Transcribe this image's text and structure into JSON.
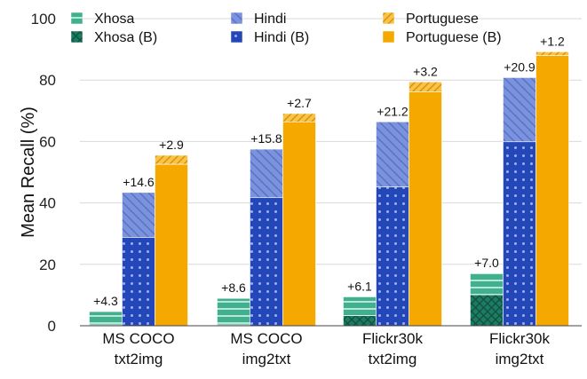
{
  "chart_data": {
    "type": "bar",
    "ylabel": "Mean Recall (%)",
    "ylim": [
      0,
      100
    ],
    "yticks": [
      0,
      20,
      40,
      60,
      80,
      100
    ],
    "grid": true,
    "legend_position": "top",
    "categories": [
      [
        "MS COCO",
        "txt2img"
      ],
      [
        "MS COCO",
        "img2txt"
      ],
      [
        "Flickr30k",
        "txt2img"
      ],
      [
        "Flickr30k",
        "img2txt"
      ]
    ],
    "series": [
      {
        "language": "Xhosa",
        "base_name": "Xhosa (B)",
        "boost_name": "Xhosa",
        "color": "#26a17f",
        "base_values": [
          0.3,
          0.3,
          3.3,
          10.1
        ],
        "total_values": [
          4.6,
          8.9,
          9.4,
          17.1
        ],
        "delta_labels": [
          "+4.3",
          "+8.6",
          "+6.1",
          "+7.0"
        ]
      },
      {
        "language": "Hindi",
        "base_name": "Hindi (B)",
        "boost_name": "Hindi",
        "color": "#2043b8",
        "light_color": "#7990d9",
        "base_values": [
          28.8,
          41.7,
          45.2,
          59.9
        ],
        "total_values": [
          43.4,
          57.5,
          66.4,
          80.8
        ],
        "delta_labels": [
          "+14.6",
          "+15.8",
          "+21.2",
          "+20.9"
        ]
      },
      {
        "language": "Portuguese",
        "base_name": "Portuguese (B)",
        "boost_name": "Portuguese",
        "color": "#f5a800",
        "light_color": "#f8c24b",
        "base_values": [
          52.6,
          66.4,
          76.2,
          88.0
        ],
        "total_values": [
          55.5,
          69.1,
          79.4,
          89.2
        ],
        "delta_labels": [
          "+2.9",
          "+2.7",
          "+3.2",
          "+1.2"
        ]
      }
    ],
    "legend": [
      {
        "label": "Xhosa",
        "series": 0,
        "kind": "boost"
      },
      {
        "label": "Xhosa (B)",
        "series": 0,
        "kind": "base"
      },
      {
        "label": "Hindi",
        "series": 1,
        "kind": "boost"
      },
      {
        "label": "Hindi (B)",
        "series": 1,
        "kind": "base"
      },
      {
        "label": "Portuguese",
        "series": 2,
        "kind": "boost"
      },
      {
        "label": "Portuguese (B)",
        "series": 2,
        "kind": "base"
      }
    ]
  }
}
